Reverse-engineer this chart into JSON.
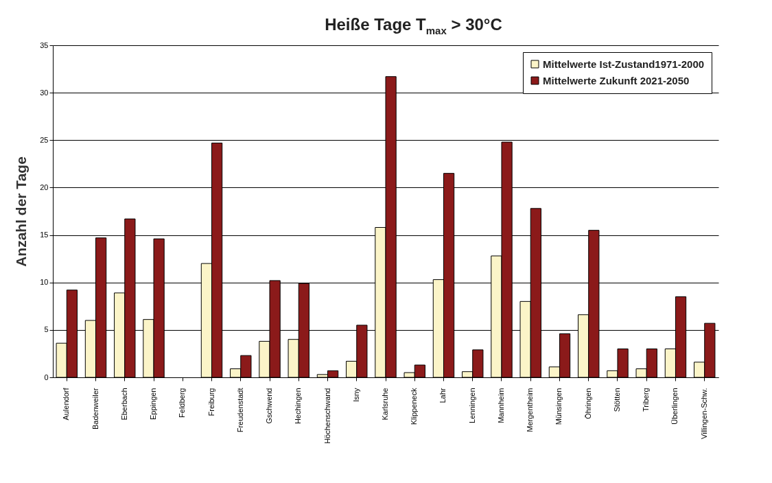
{
  "chart_data": {
    "type": "bar",
    "title": "Heiße Tage T$_{max}$ > 30°C",
    "ylabel": "Anzahl der Tage",
    "categories": [
      "Aulendorf",
      "Badenweiler",
      "Eberbach",
      "Eppingen",
      "Feldberg",
      "Freiburg",
      "Freudenstadt",
      "Gschwend",
      "Hechingen",
      "Höchenschwand",
      "Isny",
      "Karlsruhe",
      "Klippeneck",
      "Lahr",
      "Lenningen",
      "Mannheim",
      "Mergentheim",
      "Münsingen",
      "Öhringen",
      "Stötten",
      "Triberg",
      "Überlingen",
      "Villingen-Schw."
    ],
    "series": [
      {
        "name": "Mittelwerte Ist-Zustand1971-2000",
        "color": "#fbf4c8",
        "values": [
          3.6,
          6.0,
          8.9,
          6.1,
          0,
          12.0,
          0.9,
          3.8,
          4.0,
          0.3,
          1.7,
          15.8,
          0.5,
          10.3,
          0.6,
          12.8,
          8.0,
          1.1,
          6.6,
          0.7,
          0.9,
          3.0,
          1.6
        ]
      },
      {
        "name": "Mittelwerte Zukunft 2021-2050",
        "color": "#8b1a1a",
        "values": [
          9.2,
          14.7,
          16.7,
          14.6,
          0,
          24.7,
          2.3,
          10.2,
          9.9,
          0.7,
          5.5,
          31.7,
          1.3,
          21.5,
          2.9,
          24.8,
          17.8,
          4.6,
          15.5,
          3.0,
          3.0,
          8.5,
          5.7
        ]
      }
    ],
    "ylim": [
      0,
      35
    ],
    "yticks": [
      0,
      5,
      10,
      15,
      20,
      25,
      30,
      35
    ],
    "grid": "y",
    "legend": "top right"
  }
}
